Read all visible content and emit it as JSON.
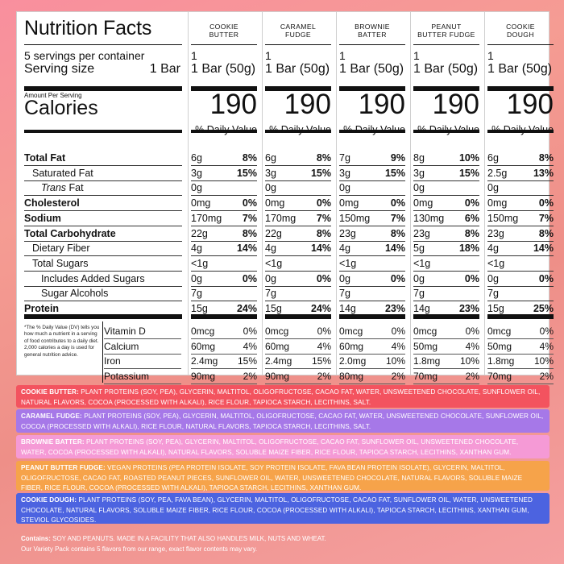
{
  "panel": {
    "title": "Nutrition Facts",
    "servings_per_container": "5 servings per container",
    "serving_size_label": "Serving size",
    "serving_size_value": "1 Bar",
    "amount_per_serving": "Amount Per Serving",
    "calories_label": "Calories",
    "rows": [
      {
        "label": "Total Fat",
        "bold": true
      },
      {
        "label": "Saturated Fat",
        "bold": false,
        "indent": 1
      },
      {
        "label": "Trans Fat",
        "bold": false,
        "indent": 2,
        "italic_prefix": "Trans",
        "suffix": " Fat"
      },
      {
        "label": "Cholesterol",
        "bold": true
      },
      {
        "label": "Sodium",
        "bold": true
      },
      {
        "label": "Total Carbohydrate",
        "bold": true
      },
      {
        "label": "Dietary Fiber",
        "bold": false,
        "indent": 1
      },
      {
        "label": "Total Sugars",
        "bold": false,
        "indent": 1
      },
      {
        "label": "Includes Added Sugars",
        "bold": false,
        "indent": 2
      },
      {
        "label": "Sugar Alcohols",
        "bold": false,
        "indent": 2
      },
      {
        "label": "Protein",
        "bold": true
      }
    ],
    "vitamins": [
      "Vitamin D",
      "Calcium",
      "Iron",
      "Potassium"
    ],
    "footnote": "*The % Daily Value (DV) tells you how much a nutrient in a serving of food contributes to a daily diet. 2,000 calories a day is used for general nutrition advice."
  },
  "flavors": [
    {
      "name": "COOKIE BUTTER",
      "servings": "1",
      "size": "1 Bar (50g)",
      "calories": "190",
      "dv_header": "% Daily Value",
      "values": [
        [
          "6g",
          "8%"
        ],
        [
          "3g",
          "15%"
        ],
        [
          "0g",
          ""
        ],
        [
          "0mg",
          "0%"
        ],
        [
          "170mg",
          "7%"
        ],
        [
          "22g",
          "8%"
        ],
        [
          "4g",
          "14%"
        ],
        [
          "<1g",
          ""
        ],
        [
          "0g",
          "0%"
        ],
        [
          "7g",
          ""
        ],
        [
          "15g",
          "24%"
        ]
      ],
      "vitamins": [
        [
          "0mcg",
          "0%"
        ],
        [
          "60mg",
          "4%"
        ],
        [
          "2.4mg",
          "15%"
        ],
        [
          "90mg",
          "2%"
        ]
      ]
    },
    {
      "name": "CARAMEL FUDGE",
      "servings": "1",
      "size": "1 Bar (50g)",
      "calories": "190",
      "dv_header": "% Daily Value",
      "values": [
        [
          "6g",
          "8%"
        ],
        [
          "3g",
          "15%"
        ],
        [
          "0g",
          ""
        ],
        [
          "0mg",
          "0%"
        ],
        [
          "170mg",
          "7%"
        ],
        [
          "22g",
          "8%"
        ],
        [
          "4g",
          "14%"
        ],
        [
          "<1g",
          ""
        ],
        [
          "0g",
          "0%"
        ],
        [
          "7g",
          ""
        ],
        [
          "15g",
          "24%"
        ]
      ],
      "vitamins": [
        [
          "0mcg",
          "0%"
        ],
        [
          "60mg",
          "4%"
        ],
        [
          "2.4mg",
          "15%"
        ],
        [
          "90mg",
          "2%"
        ]
      ]
    },
    {
      "name": "BROWNIE BATTER",
      "servings": "1",
      "size": "1 Bar (50g)",
      "calories": "190",
      "dv_header": "% Daily Value",
      "values": [
        [
          "7g",
          "9%"
        ],
        [
          "3g",
          "15%"
        ],
        [
          "0g",
          ""
        ],
        [
          "0mg",
          "0%"
        ],
        [
          "150mg",
          "7%"
        ],
        [
          "23g",
          "8%"
        ],
        [
          "4g",
          "14%"
        ],
        [
          "<1g",
          ""
        ],
        [
          "0g",
          "0%"
        ],
        [
          "7g",
          ""
        ],
        [
          "14g",
          "23%"
        ]
      ],
      "vitamins": [
        [
          "0mcg",
          "0%"
        ],
        [
          "60mg",
          "4%"
        ],
        [
          "2.0mg",
          "10%"
        ],
        [
          "80mg",
          "2%"
        ]
      ]
    },
    {
      "name": "PEANUT BUTTER FUDGE",
      "servings": "1",
      "size": "1 Bar (50g)",
      "calories": "190",
      "dv_header": "% Daily Value",
      "values": [
        [
          "8g",
          "10%"
        ],
        [
          "3g",
          "15%"
        ],
        [
          "0g",
          ""
        ],
        [
          "0mg",
          "0%"
        ],
        [
          "130mg",
          "6%"
        ],
        [
          "23g",
          "8%"
        ],
        [
          "5g",
          "18%"
        ],
        [
          "<1g",
          ""
        ],
        [
          "0g",
          "0%"
        ],
        [
          "7g",
          ""
        ],
        [
          "14g",
          "23%"
        ]
      ],
      "vitamins": [
        [
          "0mcg",
          "0%"
        ],
        [
          "50mg",
          "4%"
        ],
        [
          "1.8mg",
          "10%"
        ],
        [
          "70mg",
          "2%"
        ]
      ]
    },
    {
      "name": "COOKIE DOUGH",
      "servings": "1",
      "size": "1 Bar (50g)",
      "calories": "190",
      "dv_header": "% Daily Value",
      "values": [
        [
          "6g",
          "8%"
        ],
        [
          "2.5g",
          "13%"
        ],
        [
          "0g",
          ""
        ],
        [
          "0mg",
          "0%"
        ],
        [
          "150mg",
          "7%"
        ],
        [
          "23g",
          "8%"
        ],
        [
          "4g",
          "14%"
        ],
        [
          "<1g",
          ""
        ],
        [
          "0g",
          "0%"
        ],
        [
          "7g",
          ""
        ],
        [
          "15g",
          "25%"
        ]
      ],
      "vitamins": [
        [
          "0mcg",
          "0%"
        ],
        [
          "50mg",
          "4%"
        ],
        [
          "1.8mg",
          "10%"
        ],
        [
          "70mg",
          "2%"
        ]
      ]
    }
  ],
  "ingredients": [
    {
      "name": "COOKIE BUTTER:",
      "color": "#f3535f",
      "text": " PLANT PROTEINS (SOY, PEA), GLYCERIN, MALTITOL, OLIGOFRUCTOSE, CACAO FAT, WATER, UNSWEETENED CHOCOLATE, SUNFLOWER OIL, NATURAL FLAVORS, COCOA (PROCESSED WITH ALKALI), RICE FLOUR, TAPIOCA STARCH, LECITHINS, SALT."
    },
    {
      "name": "CARAMEL FUDGE:",
      "color": "#a678e8",
      "text": " PLANT PROTEINS (SOY, PEA), GLYCERIN, MALTITOL, OLIGOFRUCTOSE, CACAO FAT, WATER, UNSWEETENED CHOCOLATE, SUNFLOWER OIL, COCOA (PROCESSED WITH ALKALI), RICE FLOUR, NATURAL FLAVORS, TAPIOCA STARCH, LECITHINS, SALT."
    },
    {
      "name": "BROWNIE BATTER:",
      "color": "#f59ad6",
      "text": " PLANT PROTEINS (SOY, PEA), GLYCERIN, MALTITOL, OLIGOFRUCTOSE, CACAO FAT, SUNFLOWER OIL, UNSWEETENED CHOCOLATE, WATER, COCOA (PROCESSED WITH ALKALI), NATURAL FLAVORS, SOLUBLE MAIZE FIBER, RICE FLOUR, TAPIOCA STARCH, LECITHINS, XANTHAN GUM."
    },
    {
      "name": "PEANUT BUTTER FUDGE:",
      "color": "#f6a34a",
      "text": " VEGAN PROTEINS (PEA PROTEIN ISOLATE, SOY PROTEIN ISOLATE, FAVA BEAN PROTEIN ISOLATE), GLYCERIN, MALTITOL, OLIGOFRUCTOSE, CACAO FAT, ROASTED PEANUT PIECES, SUNFLOWER OIL, WATER, UNSWEETENED CHOCOLATE, NATURAL FLAVORS, SOLUBLE MAIZE FIBER, RICE FLOUR, COCOA (PROCESSED WITH ALKALI), TAPIOCA STARCH, LECITHINS, XANTHAN GUM."
    },
    {
      "name": "COOKIE DOUGH:",
      "color": "#4c63e0",
      "text": " PLANT PROTEINS (SOY, PEA, FAVA BEAN), GLYCERIN, MALTITOL, OLIGOFRUCTOSE, CACAO FAT, SUNFLOWER OIL, WATER, UNSWEETENED CHOCOLATE, NATURAL FLAVORS, SOLUBLE MAIZE FIBER, RICE FLOUR, COCOA (PROCESSED WITH ALKALI), TAPIOCA STARCH, LECITHINS, XANTHAN GUM, STEVIOL GLYCOSIDES."
    }
  ],
  "contains_label": "Contains:",
  "contains_text": " SOY AND PEANUTS. MADE IN A FACILITY THAT ALSO HANDLES MILK, NUTS AND WHEAT.",
  "variety_note": "Our Variety Pack contains 5 flavors from our range, exact flavor contents may vary."
}
